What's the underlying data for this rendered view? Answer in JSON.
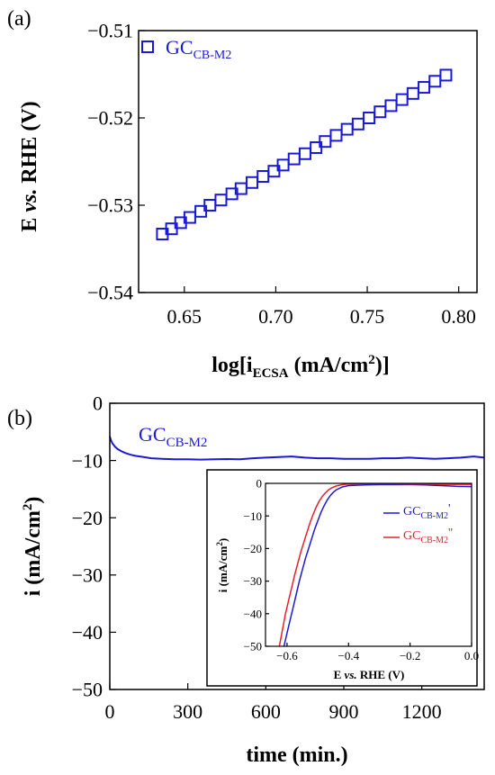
{
  "colors": {
    "blue": "#1a1ad6",
    "red": "#e8202a",
    "axis": "#000000"
  },
  "chart_data": [
    {
      "panel": "(a)",
      "type": "scatter",
      "marker": "open-square",
      "xlabel_main": "log[i",
      "xlabel_sub": "ECSA",
      "xlabel_unit": " (mA/cm",
      "xlabel_sup": "2",
      "xlabel_end": ")]",
      "ylabel": "E vs. RHE (V)",
      "ylabel_pre": "E ",
      "ylabel_it": "vs.",
      "ylabel_post": " RHE (V)",
      "xlim": [
        0.625,
        0.81
      ],
      "ylim": [
        -0.54,
        -0.51
      ],
      "xticks": [
        "0.65",
        "0.70",
        "0.75",
        "0.80"
      ],
      "yticks": [
        "−0.51",
        "−0.52",
        "−0.53",
        "−0.54"
      ],
      "legend": {
        "main": "GC",
        "sub": "CB-M2",
        "placement": "top-left"
      },
      "series": [
        {
          "name": "GC CB-M2",
          "x": [
            0.638,
            0.643,
            0.648,
            0.653,
            0.659,
            0.664,
            0.67,
            0.676,
            0.681,
            0.687,
            0.693,
            0.699,
            0.704,
            0.71,
            0.716,
            0.722,
            0.727,
            0.733,
            0.739,
            0.745,
            0.751,
            0.757,
            0.763,
            0.769,
            0.775,
            0.781,
            0.787,
            0.793
          ],
          "y": [
            -0.5333,
            -0.5327,
            -0.532,
            -0.5314,
            -0.5307,
            -0.53,
            -0.5294,
            -0.5287,
            -0.5281,
            -0.5274,
            -0.5267,
            -0.5261,
            -0.5254,
            -0.5247,
            -0.5241,
            -0.5234,
            -0.5227,
            -0.522,
            -0.5213,
            -0.5207,
            -0.52,
            -0.5193,
            -0.5186,
            -0.5179,
            -0.5172,
            -0.5165,
            -0.5158,
            -0.5151
          ]
        }
      ]
    },
    {
      "panel": "(b)",
      "type": "line",
      "xlabel": "time (min.)",
      "ylabel_main": "i (mA/cm",
      "ylabel_sup": "2",
      "ylabel_end": ")",
      "xlim": [
        0,
        1440
      ],
      "ylim": [
        -50,
        0
      ],
      "xticks": [
        "0",
        "300",
        "600",
        "900",
        "1200"
      ],
      "yticks": [
        "0",
        "−10",
        "−20",
        "−30",
        "−40",
        "−50"
      ],
      "legend": {
        "main": "GC",
        "sub": "CB-M2"
      },
      "series": [
        {
          "name": "GC CB-M2",
          "x": [
            0,
            5,
            10,
            20,
            30,
            45,
            60,
            80,
            100,
            130,
            160,
            200,
            250,
            300,
            350,
            400,
            450,
            500,
            550,
            600,
            650,
            700,
            750,
            800,
            850,
            900,
            950,
            1000,
            1050,
            1100,
            1150,
            1200,
            1250,
            1300,
            1350,
            1400,
            1440
          ],
          "y": [
            -5.8,
            -6.5,
            -7.0,
            -7.6,
            -8.0,
            -8.4,
            -8.7,
            -9.0,
            -9.2,
            -9.4,
            -9.6,
            -9.7,
            -9.8,
            -9.8,
            -9.85,
            -9.8,
            -9.75,
            -9.8,
            -9.6,
            -9.5,
            -9.4,
            -9.3,
            -9.5,
            -9.6,
            -9.6,
            -9.7,
            -9.7,
            -9.7,
            -9.6,
            -9.6,
            -9.5,
            -9.6,
            -9.7,
            -9.6,
            -9.5,
            -9.3,
            -9.5
          ]
        }
      ]
    },
    {
      "panel": "inset",
      "type": "line",
      "xlabel_pre": "E ",
      "xlabel_it": "vs.",
      "xlabel_post": " RHE (V)",
      "ylabel_main": "i (mA/cm",
      "ylabel_sup": "2",
      "ylabel_end": ")",
      "xlim": [
        -0.67,
        0.0
      ],
      "ylim": [
        -50,
        0
      ],
      "xticks": [
        "−0.6",
        "−0.4",
        "−0.2",
        "0.0"
      ],
      "yticks": [
        "0",
        "−10",
        "−20",
        "−30",
        "−40",
        "−50"
      ],
      "series": [
        {
          "name": "GC CB-M2'",
          "label_main": "GC",
          "label_sub": "CB-M2",
          "label_mark": "'",
          "color": "blue",
          "x": [
            -0.61,
            -0.6,
            -0.59,
            -0.58,
            -0.57,
            -0.56,
            -0.55,
            -0.54,
            -0.53,
            -0.52,
            -0.51,
            -0.5,
            -0.49,
            -0.48,
            -0.47,
            -0.46,
            -0.45,
            -0.44,
            -0.42,
            -0.4,
            -0.35,
            -0.3,
            -0.25,
            -0.2,
            -0.15,
            -0.1,
            -0.05,
            0.0
          ],
          "y": [
            -50,
            -46,
            -42,
            -38,
            -34,
            -30,
            -26.5,
            -23,
            -20,
            -17,
            -14,
            -11.5,
            -9,
            -7,
            -5.2,
            -3.8,
            -2.8,
            -2.0,
            -1.1,
            -0.7,
            -0.5,
            -0.4,
            -0.4,
            -0.4,
            -0.5,
            -0.7,
            -0.9,
            -1.0
          ]
        },
        {
          "name": "GC CB-M2''",
          "label_main": "GC",
          "label_sub": "CB-M2",
          "label_mark": "''",
          "color": "red",
          "x": [
            -0.625,
            -0.615,
            -0.605,
            -0.595,
            -0.585,
            -0.575,
            -0.565,
            -0.555,
            -0.545,
            -0.535,
            -0.525,
            -0.515,
            -0.505,
            -0.495,
            -0.485,
            -0.475,
            -0.465,
            -0.455,
            -0.44,
            -0.42,
            -0.4,
            -0.35,
            -0.3,
            -0.25,
            -0.2,
            -0.15,
            -0.1,
            -0.05,
            0.0
          ],
          "y": [
            -50,
            -45,
            -40,
            -36,
            -32,
            -28,
            -24.5,
            -21,
            -18,
            -15,
            -12,
            -9.5,
            -7.2,
            -5.4,
            -4.0,
            -2.9,
            -2.0,
            -1.4,
            -0.8,
            -0.4,
            -0.2,
            -0.1,
            -0.1,
            -0.1,
            -0.2,
            -0.2,
            -0.3,
            -0.3,
            -0.3
          ]
        }
      ]
    }
  ]
}
